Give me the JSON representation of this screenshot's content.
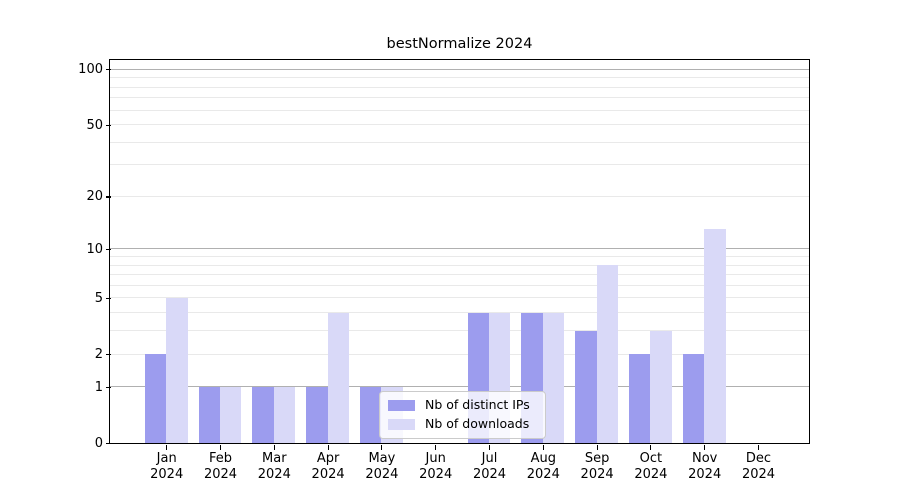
{
  "chart_data": {
    "type": "bar",
    "title": "bestNormalize 2024",
    "categories": [
      "Jan 2024",
      "Feb 2024",
      "Mar 2024",
      "Apr 2024",
      "May 2024",
      "Jun 2024",
      "Jul 2024",
      "Aug 2024",
      "Sep 2024",
      "Oct 2024",
      "Nov 2024",
      "Dec 2024"
    ],
    "series": [
      {
        "name": "Nb of distinct IPs",
        "color": "#9c9cee",
        "values": [
          2,
          1,
          1,
          1,
          1,
          0,
          4,
          4,
          3,
          2,
          2,
          0
        ]
      },
      {
        "name": "Nb of downloads",
        "color": "#d9d9f8",
        "values": [
          5,
          1,
          1,
          4,
          1,
          0,
          4,
          4,
          8,
          3,
          13,
          0
        ]
      }
    ],
    "xlabel": "",
    "ylabel": "",
    "y_axis": {
      "scale": "log1p",
      "tick_values": [
        0,
        1,
        2,
        5,
        10,
        20,
        50,
        100
      ],
      "tick_labels": [
        "0",
        "1",
        "2",
        "5",
        "10",
        "20",
        "50",
        "100"
      ],
      "major_grid_values": [
        1,
        10,
        100
      ],
      "minor_grid_values": [
        2,
        3,
        4,
        5,
        6,
        7,
        8,
        9,
        20,
        30,
        40,
        50,
        60,
        70,
        80,
        90
      ],
      "range": [
        0,
        112
      ]
    },
    "grid": "horizontal",
    "legend": {
      "position": "lower center, inside plot"
    },
    "colors": {
      "grid_major": "#b0b0b0",
      "grid_minor": "#e9e9e9",
      "spine": "#000000",
      "text": "#000000",
      "background": "#ffffff"
    }
  }
}
